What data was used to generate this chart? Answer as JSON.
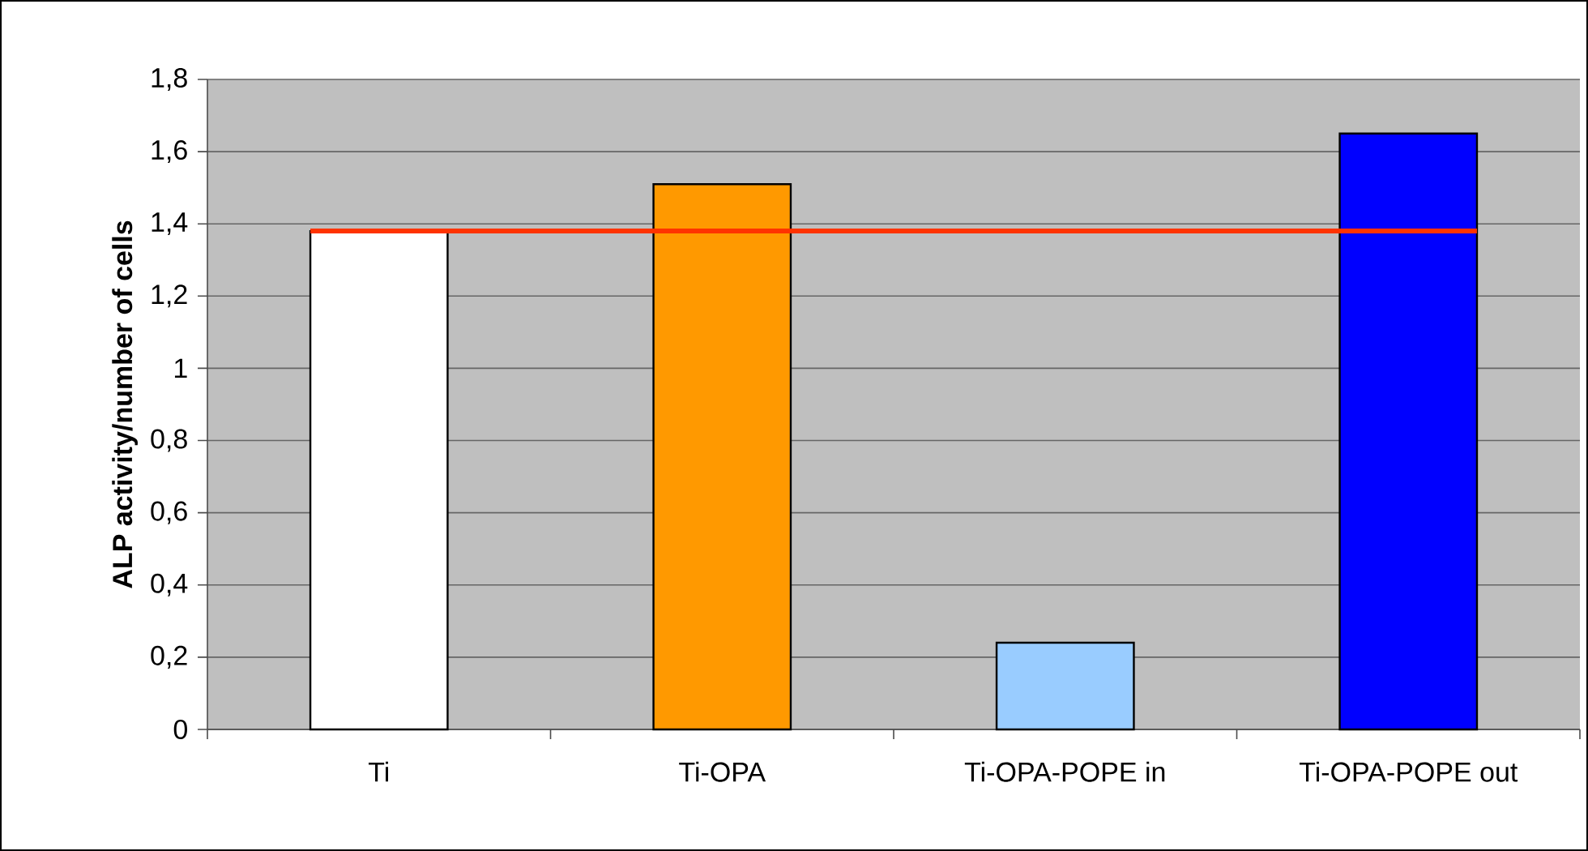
{
  "chart_data": {
    "type": "bar",
    "ylabel": "ALP activity/number of cells",
    "categories": [
      "Ti",
      "Ti-OPA",
      "Ti-OPA-POPE in",
      "Ti-OPA-POPE out"
    ],
    "values": [
      1.38,
      1.51,
      0.24,
      1.65
    ],
    "colors": [
      "#ffffff",
      "#ff9900",
      "#99ccff",
      "#0000ff"
    ],
    "ylim": [
      0,
      1.8
    ],
    "yticks": [
      {
        "value": 0,
        "label": "0"
      },
      {
        "value": 0.2,
        "label": "0,2"
      },
      {
        "value": 0.4,
        "label": "0,4"
      },
      {
        "value": 0.6,
        "label": "0,6"
      },
      {
        "value": 0.8,
        "label": "0,8"
      },
      {
        "value": 1,
        "label": "1"
      },
      {
        "value": 1.2,
        "label": "1,2"
      },
      {
        "value": 1.4,
        "label": "1,4"
      },
      {
        "value": 1.6,
        "label": "1,6"
      },
      {
        "value": 1.8,
        "label": "1,8"
      }
    ],
    "grid": "y",
    "ref_lines": [
      {
        "axis": "y",
        "value": 1.38,
        "color": "#ff3300"
      }
    ]
  }
}
